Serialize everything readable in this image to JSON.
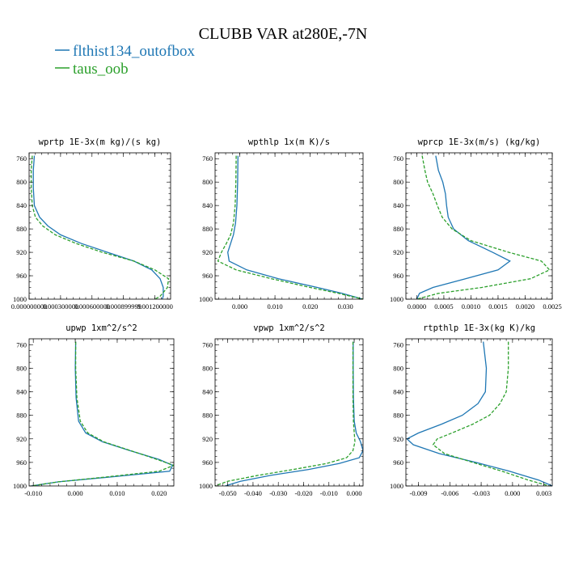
{
  "figure": {
    "title": "CLUBB VAR at280E,-7N",
    "legend": [
      {
        "label": "flthist134_outofbox",
        "color": "#1f77b4",
        "dash": "solid"
      },
      {
        "label": "taus_oob",
        "color": "#2ca02c",
        "dash": "dashed"
      }
    ]
  },
  "chart_data": [
    {
      "type": "line",
      "title": "wprtp  1E-3x(m kg)/(s kg)",
      "ylim": [
        1000,
        750
      ],
      "xlim": [
        0,
        0.00135
      ],
      "xticks": [
        0,
        0.0003,
        0.0006,
        0.0009,
        0.0012
      ],
      "xtick_labels": [
        "0.000000000",
        "0.000300000",
        "0.000600000",
        "0.000899999",
        "0.001200000"
      ],
      "yticks": [
        760,
        800,
        840,
        880,
        920,
        960,
        1000
      ],
      "y": [
        755,
        780,
        810,
        840,
        860,
        875,
        890,
        905,
        920,
        935,
        950,
        965,
        980,
        995,
        1000
      ],
      "series": [
        {
          "name": "flthist134_outofbox",
          "values": [
            5e-05,
            4e-05,
            4e-05,
            5e-05,
            0.0001,
            0.00018,
            0.0003,
            0.0005,
            0.00075,
            0.001,
            0.00117,
            0.00125,
            0.00128,
            0.00128,
            0.00127
          ]
        },
        {
          "name": "taus_oob",
          "values": [
            3e-05,
            2e-05,
            2e-05,
            3e-05,
            6e-05,
            0.00013,
            0.00025,
            0.00045,
            0.0007,
            0.001,
            0.0012,
            0.00133,
            0.00132,
            0.00125,
            0.0012
          ]
        }
      ]
    },
    {
      "type": "line",
      "title": "wpthlp  1x(m K)/s",
      "ylim": [
        1000,
        750
      ],
      "xlim": [
        -0.007,
        0.035
      ],
      "xticks": [
        0,
        0.01,
        0.02,
        0.03
      ],
      "xtick_labels": [
        "0.000",
        "0.010",
        "0.020",
        "0.030"
      ],
      "yticks": [
        760,
        800,
        840,
        880,
        920,
        960,
        1000
      ],
      "y": [
        755,
        800,
        840,
        870,
        890,
        905,
        920,
        935,
        950,
        965,
        980,
        990,
        1000
      ],
      "series": [
        {
          "name": "flthist134_outofbox",
          "values": [
            -0.0005,
            -0.0006,
            -0.0008,
            -0.0012,
            -0.0018,
            -0.0026,
            -0.0034,
            -0.003,
            0.002,
            0.011,
            0.022,
            0.029,
            0.035
          ]
        },
        {
          "name": "taus_oob",
          "values": [
            -0.001,
            -0.0011,
            -0.0013,
            -0.0018,
            -0.0026,
            -0.0038,
            -0.0052,
            -0.0062,
            -0.001,
            0.009,
            0.02,
            0.028,
            0.035
          ]
        }
      ]
    },
    {
      "type": "line",
      "title": "wprcp  1E-3x(m/s) (kg/kg)",
      "ylim": [
        1000,
        750
      ],
      "xlim": [
        -0.0002,
        0.0025
      ],
      "xticks": [
        0,
        0.0005,
        0.001,
        0.0015,
        0.002,
        0.0025
      ],
      "xtick_labels": [
        "0.0000",
        "0.0005",
        "0.0010",
        "0.0015",
        "0.0020",
        "0.0025"
      ],
      "yticks": [
        760,
        800,
        840,
        880,
        920,
        960,
        1000
      ],
      "y": [
        755,
        780,
        800,
        820,
        840,
        860,
        880,
        900,
        920,
        935,
        950,
        965,
        980,
        990,
        1000
      ],
      "series": [
        {
          "name": "flthist134_outofbox",
          "values": [
            0.00035,
            0.0004,
            0.00048,
            0.00053,
            0.00055,
            0.00058,
            0.00068,
            0.00095,
            0.0014,
            0.00172,
            0.0015,
            0.0009,
            0.0003,
            5e-05,
            0.0
          ]
        },
        {
          "name": "taus_oob",
          "values": [
            0.0001,
            0.00015,
            0.0002,
            0.0003,
            0.00038,
            0.00047,
            0.00065,
            0.001,
            0.0017,
            0.0023,
            0.00245,
            0.0021,
            0.0012,
            0.0004,
            0.0
          ]
        }
      ]
    },
    {
      "type": "line",
      "title": "upwp  1xm^2/s^2",
      "ylim": [
        1000,
        750
      ],
      "xlim": [
        -0.011,
        0.0235
      ],
      "xticks": [
        -0.01,
        0,
        0.01,
        0.02
      ],
      "xtick_labels": [
        "-0.010",
        "0.000",
        "0.010",
        "0.020"
      ],
      "yticks": [
        760,
        800,
        840,
        880,
        920,
        960,
        1000
      ],
      "y": [
        755,
        800,
        850,
        890,
        910,
        925,
        940,
        955,
        965,
        975,
        985,
        993,
        1000
      ],
      "series": [
        {
          "name": "flthist134_outofbox",
          "values": [
            0.0001,
            0.0,
            0.0002,
            0.0008,
            0.0025,
            0.0065,
            0.013,
            0.02,
            0.0232,
            0.0225,
            0.008,
            -0.004,
            -0.0105
          ]
        },
        {
          "name": "taus_oob",
          "values": [
            0.0001,
            0.0001,
            0.0004,
            0.0012,
            0.003,
            0.0068,
            0.0132,
            0.0195,
            0.0235,
            0.02,
            0.007,
            -0.004,
            -0.0105
          ]
        }
      ]
    },
    {
      "type": "line",
      "title": "vpwp  1xm^2/s^2",
      "ylim": [
        1000,
        750
      ],
      "xlim": [
        -0.055,
        0.0035
      ],
      "xticks": [
        -0.05,
        -0.04,
        -0.03,
        -0.02,
        -0.01,
        0
      ],
      "xtick_labels": [
        "-0.050",
        "-0.040",
        "-0.030",
        "-0.020",
        "-0.010",
        "0.000"
      ],
      "yticks": [
        760,
        800,
        840,
        880,
        920,
        960,
        1000
      ],
      "y": [
        755,
        800,
        850,
        890,
        910,
        925,
        940,
        952,
        962,
        972,
        982,
        992,
        1000
      ],
      "series": [
        {
          "name": "flthist134_outofbox",
          "values": [
            -0.0004,
            -0.0004,
            -0.0003,
            0.0,
            0.0008,
            0.0025,
            0.0035,
            0.002,
            -0.006,
            -0.018,
            -0.033,
            -0.045,
            -0.051
          ]
        },
        {
          "name": "taus_oob",
          "values": [
            -0.0005,
            -0.0005,
            -0.0005,
            -0.0003,
            0.0,
            0.0003,
            -0.0005,
            -0.003,
            -0.011,
            -0.024,
            -0.038,
            -0.05,
            -0.055
          ]
        }
      ]
    },
    {
      "type": "line",
      "title": "rtpthlp  1E-3x(kg K)/kg",
      "ylim": [
        1000,
        750
      ],
      "xlim": [
        -0.0102,
        0.0038
      ],
      "xticks": [
        -0.009,
        -0.006,
        -0.003,
        0,
        0.003
      ],
      "xtick_labels": [
        "-0.009",
        "-0.006",
        "-0.003",
        "0.000",
        "0.003"
      ],
      "yticks": [
        760,
        800,
        840,
        880,
        920,
        960,
        1000
      ],
      "y": [
        755,
        800,
        840,
        860,
        880,
        895,
        910,
        920,
        930,
        945,
        960,
        975,
        990,
        1000
      ],
      "series": [
        {
          "name": "flthist134_outofbox",
          "values": [
            -0.0028,
            -0.0025,
            -0.0026,
            -0.0033,
            -0.0048,
            -0.0068,
            -0.009,
            -0.0101,
            -0.0095,
            -0.007,
            -0.0035,
            -0.0003,
            0.0025,
            0.0038
          ]
        },
        {
          "name": "taus_oob",
          "values": [
            -0.0004,
            -0.0004,
            -0.0006,
            -0.0012,
            -0.0022,
            -0.0038,
            -0.0058,
            -0.0072,
            -0.0076,
            -0.0065,
            -0.0038,
            -0.001,
            0.0015,
            0.0035
          ]
        }
      ]
    }
  ]
}
